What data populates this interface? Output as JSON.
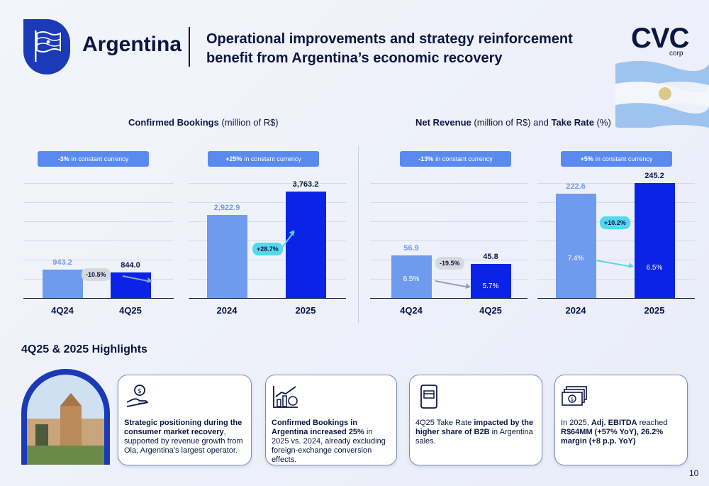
{
  "header": {
    "country": "Argentina",
    "headline_line1": "Operational improvements and strategy reinforcement",
    "headline_line2": "benefit from Argentina’s economic recovery",
    "logo_main": "CVC",
    "logo_sub": "corp"
  },
  "bookings": {
    "title_bold": "Confirmed Bookings",
    "title_rest": " (million of R$)",
    "pill_quarter_bold": "-3%",
    "pill_quarter_rest": "in constant currency",
    "pill_year_bold": "+25%",
    "pill_year_rest": "in constant currency"
  },
  "revenue": {
    "title_bold1": "Net Revenue",
    "title_rest1": " (million of R$) and ",
    "title_bold2": "Take Rate",
    "title_rest2": " (%)",
    "pill_quarter_bold": "-13%",
    "pill_quarter_rest": "in constant currency",
    "pill_year_bold": "+5%",
    "pill_year_rest": "in constant currency"
  },
  "chart_data": [
    {
      "type": "bar",
      "title": "Confirmed Bookings - Quarter",
      "categories": [
        "4Q24",
        "4Q25"
      ],
      "values": [
        943.2,
        844.0
      ],
      "labels": [
        "943.2",
        "844.0"
      ],
      "change": "-10.5%"
    },
    {
      "type": "bar",
      "title": "Confirmed Bookings - Year",
      "categories": [
        "2024",
        "2025"
      ],
      "values": [
        2922.9,
        3763.2
      ],
      "labels": [
        "2,922.9",
        "3,763.2"
      ],
      "change": "+28.7%"
    },
    {
      "type": "bar",
      "title": "Net Revenue - Quarter",
      "categories": [
        "4Q24",
        "4Q25"
      ],
      "values": [
        56.9,
        45.8
      ],
      "labels": [
        "56.9",
        "45.8"
      ],
      "take_rate": [
        "6.5%",
        "5.7%"
      ],
      "change": "-19.5%"
    },
    {
      "type": "bar",
      "title": "Net Revenue - Year",
      "categories": [
        "2024",
        "2025"
      ],
      "values": [
        222.6,
        245.2
      ],
      "labels": [
        "222.6",
        "245.2"
      ],
      "take_rate": [
        "7.4%",
        "6.5%"
      ],
      "change": "+10.2%"
    }
  ],
  "highlights": {
    "title": "4Q25 & 2025 Highlights",
    "cards": [
      {
        "bold": "Strategic positioning during the consumer market recovery",
        "rest": ", supported by revenue growth from Ola, Argentina’s largest operator."
      },
      {
        "bold": "Confirmed Bookings in Argentina increased 25%",
        "rest": " in 2025 vs. 2024, already excluding foreign-exchange conversion effects."
      },
      {
        "pre": "4Q25 Take Rate ",
        "bold": "impacted by the higher share of B2B",
        "rest": " in Argentina sales."
      },
      {
        "pre": "In 2025, ",
        "bold": "Adj. EBITDA",
        "mid": " reached ",
        "bold2": "R$64MM (+57% YoY), 26.2% margin (+8 p.p. YoY)"
      }
    ]
  },
  "page_number": "10",
  "colors": {
    "navy": "#0b1742",
    "bar_light": "#6f9bef",
    "bar_dark": "#0a23e6",
    "pill": "#5a8af0",
    "cyan": "#55d7ee",
    "grey_bubble": "#d7d9df"
  },
  "icons": [
    "flag-icon",
    "money-hand-icon",
    "growth-chart-icon",
    "card-phone-icon",
    "cash-icon"
  ]
}
